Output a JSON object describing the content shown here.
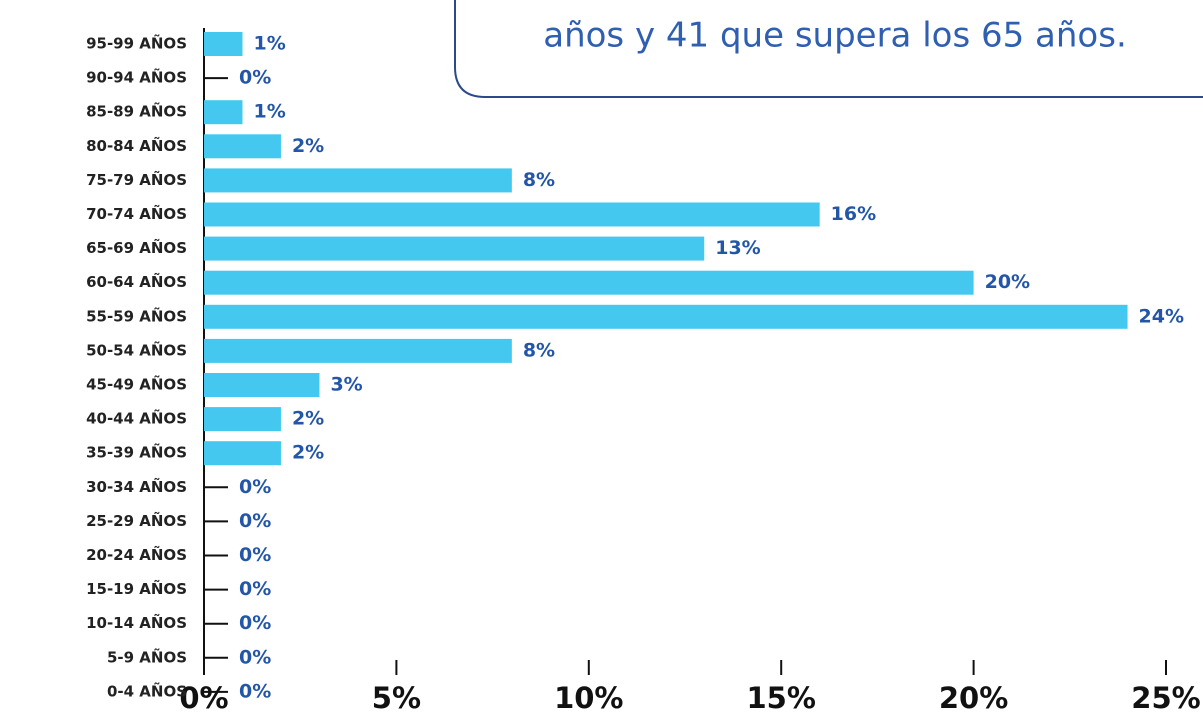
{
  "chart_data": {
    "type": "bar",
    "orientation": "horizontal",
    "annotation": "años y 41 que supera los 65 años.",
    "categories": [
      "95-99 AÑOS",
      "90-94 AÑOS",
      "85-89 AÑOS",
      "80-84 AÑOS",
      "75-79 AÑOS",
      "70-74 AÑOS",
      "65-69 AÑOS",
      "60-64 AÑOS",
      "55-59 AÑOS",
      "50-54 AÑOS",
      "45-49 AÑOS",
      "40-44 AÑOS",
      "35-39 AÑOS",
      "30-34 AÑOS",
      "25-29 AÑOS",
      "20-24 AÑOS",
      "15-19 AÑOS",
      "10-14 AÑOS",
      "5-9 AÑOS",
      "0-4 AÑOS"
    ],
    "values": [
      1,
      0,
      1,
      2,
      8,
      16,
      13,
      20,
      24,
      8,
      3,
      2,
      2,
      0,
      0,
      0,
      0,
      0,
      0,
      0
    ],
    "value_labels": [
      "1%",
      "0%",
      "1%",
      "2%",
      "8%",
      "16%",
      "13%",
      "20%",
      "24%",
      "8%",
      "3%",
      "2%",
      "2%",
      "0%",
      "0%",
      "0%",
      "0%",
      "0%",
      "0%",
      "0%"
    ],
    "color": "#45c8f0",
    "xlim": [
      0,
      25
    ],
    "xticks": [
      {
        "value": 0,
        "label": "0%"
      },
      {
        "value": 5,
        "label": "5%"
      },
      {
        "value": 10,
        "label": "10%"
      },
      {
        "value": 15,
        "label": "15%"
      },
      {
        "value": 20,
        "label": "20%"
      },
      {
        "value": 25,
        "label": "25%"
      }
    ],
    "grid": false
  }
}
